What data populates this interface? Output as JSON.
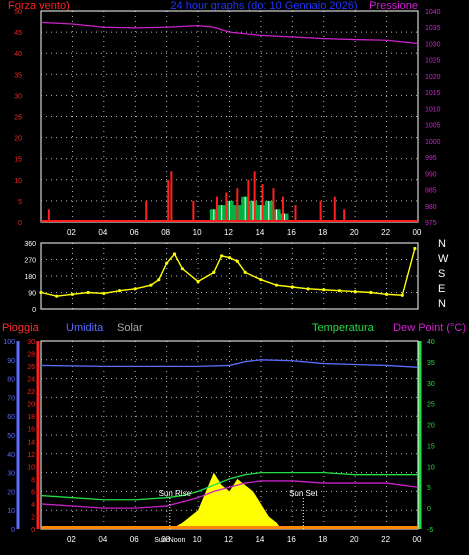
{
  "header": {
    "left_label": "Forza vento)",
    "title": "24 hour graphs (do: 10 Gennaio 2026)",
    "right_label": "Pressione"
  },
  "colors": {
    "wind": "#ff2020",
    "gust": "#ffffff",
    "gust_fill": "#00d050",
    "pressure": "#cc22cc",
    "direction": "#ffff00",
    "rain": "#ff3030",
    "humidity": "#5c6cff",
    "solar": "#ffff00",
    "temperature": "#22dd44",
    "dewpoint": "#cc22cc",
    "grid": "#bbbbbb",
    "axis_red": "#ff2020",
    "axis_blue": "#5c6cff",
    "axis_magenta": "#cc22cc",
    "axis_green": "#22dd44",
    "axis_white": "#ffffff"
  },
  "x_ticks": [
    "02",
    "04",
    "06",
    "08",
    "10",
    "12",
    "14",
    "16",
    "18",
    "20",
    "22",
    "00"
  ],
  "compass": [
    "N",
    "W",
    "S",
    "E",
    "N"
  ],
  "chart_data": [
    {
      "type": "line",
      "name": "wind-pressure",
      "xlim": [
        0,
        24
      ],
      "y_left": {
        "label": "Forza vento)",
        "ticks": [
          0,
          5,
          10,
          15,
          20,
          25,
          30,
          35,
          40,
          45,
          50
        ],
        "lim": [
          0,
          50
        ]
      },
      "y_right": {
        "label": "Pressione",
        "ticks": [
          975,
          980,
          985,
          990,
          995,
          1000,
          1005,
          1010,
          1015,
          1020,
          1025,
          1030,
          1035,
          1040
        ],
        "lim": [
          975,
          1040
        ]
      },
      "pressure": {
        "x": [
          0,
          2,
          4,
          6,
          8,
          10,
          11,
          12,
          14,
          16,
          18,
          20,
          22,
          24
        ],
        "y": [
          1036.5,
          1036,
          1035,
          1034.8,
          1035,
          1035.5,
          1035,
          1033.5,
          1032.5,
          1032,
          1031.5,
          1031.2,
          1031,
          1030
        ]
      },
      "wind_spikes": [
        {
          "x": 0.5,
          "y": 3
        },
        {
          "x": 6.7,
          "y": 5
        },
        {
          "x": 8.1,
          "y": 10
        },
        {
          "x": 8.3,
          "y": 12
        },
        {
          "x": 9.7,
          "y": 5
        },
        {
          "x": 11.2,
          "y": 6
        },
        {
          "x": 11.8,
          "y": 7
        },
        {
          "x": 12.5,
          "y": 8
        },
        {
          "x": 13.2,
          "y": 10
        },
        {
          "x": 13.6,
          "y": 12
        },
        {
          "x": 14.1,
          "y": 9
        },
        {
          "x": 14.8,
          "y": 8
        },
        {
          "x": 15.4,
          "y": 6
        },
        {
          "x": 16.2,
          "y": 4
        },
        {
          "x": 17.8,
          "y": 5
        },
        {
          "x": 18.7,
          "y": 6
        },
        {
          "x": 19.3,
          "y": 3
        }
      ],
      "gust_band": {
        "x": [
          11,
          11.5,
          12,
          12.5,
          13,
          13.5,
          14,
          14.5,
          15,
          15.5
        ],
        "y": [
          3,
          4,
          5,
          4,
          6,
          5,
          4,
          5,
          3,
          2
        ]
      }
    },
    {
      "type": "scatter",
      "name": "wind-direction",
      "xlim": [
        0,
        24
      ],
      "y_left": {
        "ticks": [
          0,
          90,
          180,
          270,
          360
        ],
        "lim": [
          0,
          360
        ]
      },
      "series": [
        {
          "x": [
            0,
            1,
            2,
            3,
            4,
            5,
            6,
            7,
            7.5,
            8,
            8.5,
            9,
            10,
            11,
            11.5,
            12,
            12.5,
            13,
            14,
            15,
            16,
            17,
            18,
            19,
            20,
            21,
            22,
            23,
            23.8
          ],
          "y": [
            90,
            70,
            80,
            90,
            85,
            100,
            110,
            130,
            160,
            250,
            300,
            220,
            150,
            200,
            290,
            280,
            260,
            200,
            160,
            130,
            120,
            110,
            105,
            100,
            95,
            90,
            80,
            75,
            330
          ]
        }
      ]
    },
    {
      "type": "line",
      "name": "rain-humidity-solar-temp-dew",
      "xlim": [
        0,
        24
      ],
      "labels": {
        "rain": "Pioggia",
        "humidity": "Umidita",
        "solar": "Solar",
        "temperature": "Temperatura",
        "dewpoint": "Dew Point (°C)"
      },
      "y_humidity": {
        "ticks": [
          0,
          10,
          20,
          30,
          40,
          50,
          60,
          70,
          80,
          90,
          100
        ],
        "lim": [
          0,
          100
        ]
      },
      "y_rain": {
        "ticks": [
          0,
          2,
          4,
          6,
          8,
          10,
          12,
          14,
          16,
          18,
          20,
          22,
          24,
          26,
          28,
          30
        ],
        "lim": [
          0,
          30
        ]
      },
      "y_temp": {
        "ticks": [
          -5,
          0,
          5,
          10,
          15,
          20,
          25,
          30,
          35,
          40
        ],
        "lim": [
          -5,
          40
        ]
      },
      "humidity": {
        "x": [
          0,
          4,
          8,
          10,
          12,
          13,
          14,
          16,
          18,
          20,
          22,
          24
        ],
        "y": [
          87,
          86.5,
          86.5,
          86.5,
          87,
          89,
          90,
          89.5,
          88,
          87.5,
          87,
          86
        ]
      },
      "temperature": {
        "x": [
          0,
          2,
          4,
          6,
          8,
          9,
          10,
          11,
          12,
          13,
          14,
          16,
          18,
          20,
          22,
          24
        ],
        "y": [
          3,
          2.5,
          2,
          2,
          2.5,
          3,
          4,
          5.5,
          7,
          8,
          8.5,
          8.5,
          8.5,
          8,
          8,
          8
        ]
      },
      "dewpoint": {
        "x": [
          0,
          2,
          4,
          6,
          8,
          9,
          10,
          11,
          12,
          13,
          14,
          16,
          18,
          20,
          22,
          24
        ],
        "y": [
          1,
          0.5,
          0,
          0,
          0.5,
          1.5,
          2.5,
          4,
          5,
          6,
          6.5,
          6.5,
          6,
          6,
          6,
          5
        ]
      },
      "solar": {
        "x": [
          0,
          8.3,
          9,
          10,
          10.5,
          11,
          11.5,
          12,
          12.5,
          13,
          13.5,
          14,
          14.5,
          15,
          15.3,
          24
        ],
        "y": [
          0,
          0,
          1,
          3,
          6,
          9,
          7,
          6,
          8,
          7,
          6,
          4,
          2,
          1,
          0,
          0
        ]
      },
      "rain_total": 0,
      "annotations": [
        {
          "text": "Sun Rise",
          "x": 8.2
        },
        {
          "text": "Sun Set",
          "x": 16.7
        },
        {
          "text": "Sun Noon",
          "x": 8.2
        }
      ]
    }
  ]
}
